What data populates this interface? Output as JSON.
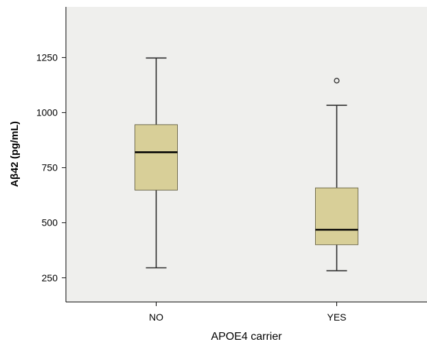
{
  "chart_data": {
    "type": "box",
    "xlabel": "APOE4 carrier",
    "ylabel": "Aβ42 (pg/mL)",
    "categories": [
      "NO",
      "YES"
    ],
    "yticks": [
      250,
      500,
      750,
      1000,
      1250
    ],
    "ylim": [
      140,
      1480
    ],
    "grid": false,
    "colors": {
      "plot_background": "#efefed",
      "box_fill": "#d8cf98",
      "box_stroke": "#2a2a2a",
      "median": "#000000",
      "axis": "#000000"
    },
    "boxes": [
      {
        "category": "NO",
        "min": 295,
        "q1": 648,
        "median": 820,
        "q3": 945,
        "max": 1248,
        "outliers": []
      },
      {
        "category": "YES",
        "min": 282,
        "q1": 400,
        "median": 468,
        "q3": 658,
        "max": 1033,
        "outliers": [
          1145
        ]
      }
    ]
  }
}
